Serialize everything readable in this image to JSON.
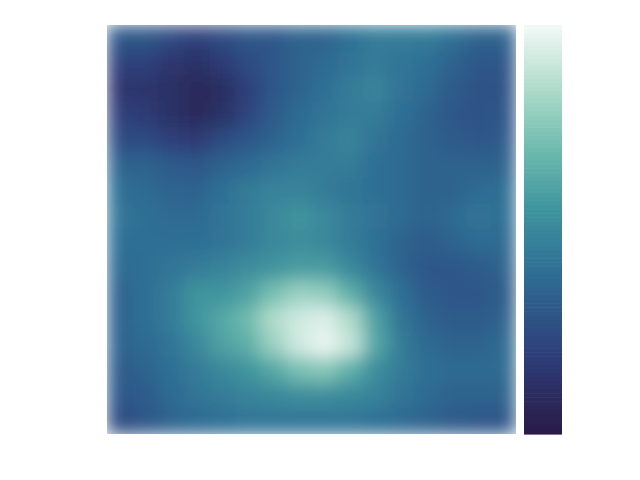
{
  "chart_data": {
    "type": "heatmap",
    "tick_labels": false,
    "zlim": [
      0,
      1
    ],
    "cells": [
      [
        0.3,
        0.3,
        0.25,
        0.2,
        0.25,
        0.3,
        0.3,
        0.35,
        0.35,
        0.4,
        0.45,
        0.45,
        0.45,
        0.4,
        0.35,
        0.35
      ],
      [
        0.2,
        0.2,
        0.15,
        0.12,
        0.18,
        0.25,
        0.3,
        0.35,
        0.38,
        0.42,
        0.45,
        0.42,
        0.4,
        0.35,
        0.3,
        0.3
      ],
      [
        0.15,
        0.15,
        0.12,
        0.08,
        0.1,
        0.2,
        0.3,
        0.35,
        0.4,
        0.45,
        0.48,
        0.42,
        0.38,
        0.32,
        0.28,
        0.28
      ],
      [
        0.2,
        0.18,
        0.12,
        0.08,
        0.12,
        0.22,
        0.32,
        0.38,
        0.42,
        0.45,
        0.45,
        0.4,
        0.35,
        0.3,
        0.28,
        0.3
      ],
      [
        0.25,
        0.25,
        0.2,
        0.18,
        0.25,
        0.3,
        0.35,
        0.4,
        0.45,
        0.48,
        0.42,
        0.38,
        0.35,
        0.32,
        0.3,
        0.32
      ],
      [
        0.35,
        0.35,
        0.32,
        0.3,
        0.35,
        0.38,
        0.42,
        0.45,
        0.45,
        0.45,
        0.4,
        0.38,
        0.35,
        0.35,
        0.35,
        0.35
      ],
      [
        0.4,
        0.38,
        0.36,
        0.35,
        0.4,
        0.45,
        0.48,
        0.48,
        0.45,
        0.42,
        0.4,
        0.38,
        0.35,
        0.35,
        0.38,
        0.4
      ],
      [
        0.42,
        0.4,
        0.38,
        0.38,
        0.42,
        0.45,
        0.5,
        0.55,
        0.5,
        0.45,
        0.42,
        0.38,
        0.35,
        0.38,
        0.42,
        0.4
      ],
      [
        0.4,
        0.4,
        0.4,
        0.4,
        0.42,
        0.45,
        0.5,
        0.52,
        0.5,
        0.45,
        0.4,
        0.35,
        0.32,
        0.35,
        0.38,
        0.38
      ],
      [
        0.38,
        0.4,
        0.42,
        0.45,
        0.48,
        0.52,
        0.55,
        0.58,
        0.58,
        0.5,
        0.42,
        0.35,
        0.3,
        0.3,
        0.32,
        0.35
      ],
      [
        0.35,
        0.4,
        0.45,
        0.55,
        0.55,
        0.6,
        0.72,
        0.8,
        0.78,
        0.65,
        0.5,
        0.4,
        0.32,
        0.3,
        0.3,
        0.32
      ],
      [
        0.35,
        0.4,
        0.45,
        0.55,
        0.62,
        0.7,
        0.85,
        0.92,
        0.95,
        0.85,
        0.6,
        0.42,
        0.35,
        0.32,
        0.32,
        0.35
      ],
      [
        0.35,
        0.38,
        0.42,
        0.5,
        0.6,
        0.65,
        0.8,
        0.92,
        0.98,
        0.9,
        0.62,
        0.45,
        0.38,
        0.35,
        0.35,
        0.38
      ],
      [
        0.32,
        0.35,
        0.4,
        0.45,
        0.5,
        0.55,
        0.62,
        0.72,
        0.75,
        0.65,
        0.52,
        0.45,
        0.4,
        0.38,
        0.38,
        0.38
      ],
      [
        0.3,
        0.32,
        0.38,
        0.42,
        0.45,
        0.48,
        0.5,
        0.52,
        0.52,
        0.5,
        0.48,
        0.42,
        0.38,
        0.35,
        0.35,
        0.35
      ],
      [
        0.25,
        0.3,
        0.35,
        0.38,
        0.4,
        0.42,
        0.42,
        0.42,
        0.42,
        0.42,
        0.4,
        0.38,
        0.35,
        0.32,
        0.3,
        0.3
      ]
    ]
  }
}
